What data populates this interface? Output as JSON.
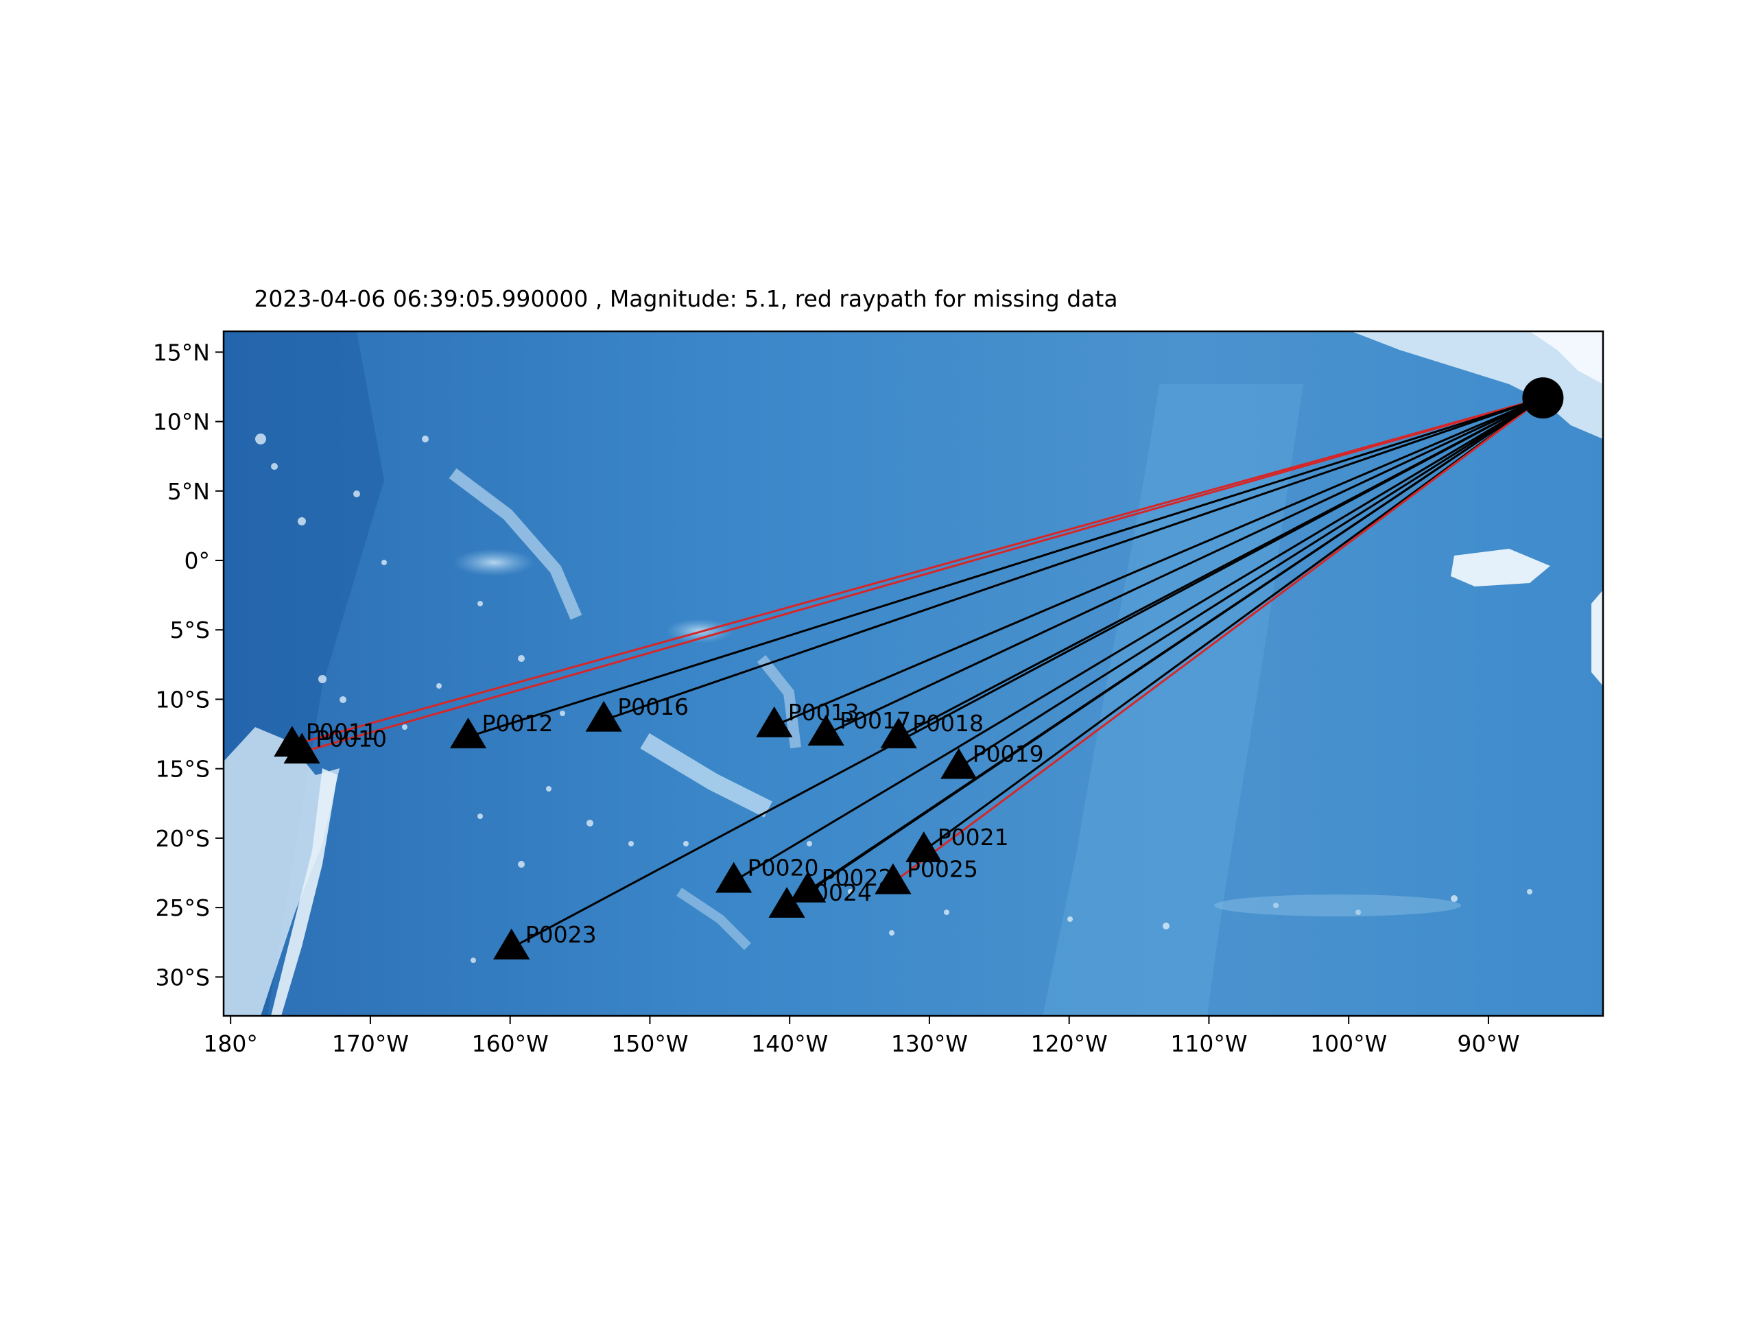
{
  "figure": {
    "title": "2023-04-06 06:39:05.990000 , Magnitude: 5.1, red raypath for missing data"
  },
  "chart_data": {
    "type": "scatter",
    "title": "2023-04-06 06:39:05.990000 , Magnitude: 5.1, red raypath for missing data",
    "xlabel": "",
    "ylabel": "",
    "xlim": [
      -180.5,
      -81.8
    ],
    "ylim": [
      -32.8,
      16.5
    ],
    "x_ticks": [
      {
        "value": -180,
        "label": "180°"
      },
      {
        "value": -170,
        "label": "170°W"
      },
      {
        "value": -160,
        "label": "160°W"
      },
      {
        "value": -150,
        "label": "150°W"
      },
      {
        "value": -140,
        "label": "140°W"
      },
      {
        "value": -130,
        "label": "130°W"
      },
      {
        "value": -120,
        "label": "120°W"
      },
      {
        "value": -110,
        "label": "110°W"
      },
      {
        "value": -100,
        "label": "100°W"
      },
      {
        "value": -90,
        "label": "90°W"
      }
    ],
    "y_ticks": [
      {
        "value": 15,
        "label": "15°N"
      },
      {
        "value": 10,
        "label": "10°N"
      },
      {
        "value": 5,
        "label": "5°N"
      },
      {
        "value": 0,
        "label": "0°"
      },
      {
        "value": -5,
        "label": "5°S"
      },
      {
        "value": -10,
        "label": "10°S"
      },
      {
        "value": -15,
        "label": "15°S"
      },
      {
        "value": -20,
        "label": "20°S"
      },
      {
        "value": -25,
        "label": "25°S"
      },
      {
        "value": -30,
        "label": "30°S"
      }
    ],
    "grid": false,
    "basemap": "ocean-bathymetry",
    "colors": {
      "raypath": "#000000",
      "missing_raypath": "#d62728",
      "station": "#000000",
      "event": "#000000"
    },
    "event": {
      "lon": -86.1,
      "lat": 11.7
    },
    "stations": [
      {
        "name": "P0011",
        "lon": -175.6,
        "lat": -13.3,
        "missing": true
      },
      {
        "name": "P0010",
        "lon": -174.9,
        "lat": -13.8,
        "missing": true
      },
      {
        "name": "P0012",
        "lon": -163.0,
        "lat": -12.7,
        "missing": false
      },
      {
        "name": "P0016",
        "lon": -153.3,
        "lat": -11.5,
        "missing": false
      },
      {
        "name": "P0013",
        "lon": -141.1,
        "lat": -11.9,
        "missing": false
      },
      {
        "name": "P0017",
        "lon": -137.4,
        "lat": -12.5,
        "missing": false
      },
      {
        "name": "P0018",
        "lon": -132.2,
        "lat": -12.7,
        "missing": false
      },
      {
        "name": "P0019",
        "lon": -127.9,
        "lat": -14.9,
        "missing": false
      },
      {
        "name": "P0021",
        "lon": -130.4,
        "lat": -20.9,
        "missing": false
      },
      {
        "name": "P0025",
        "lon": -132.6,
        "lat": -23.2,
        "missing": true
      },
      {
        "name": "P0020",
        "lon": -144.0,
        "lat": -23.1,
        "missing": false
      },
      {
        "name": "P0022",
        "lon": -138.7,
        "lat": -23.8,
        "missing": false
      },
      {
        "name": "P0024",
        "lon": -140.2,
        "lat": -24.9,
        "missing": false
      },
      {
        "name": "P0023",
        "lon": -159.9,
        "lat": -27.9,
        "missing": false
      }
    ]
  }
}
